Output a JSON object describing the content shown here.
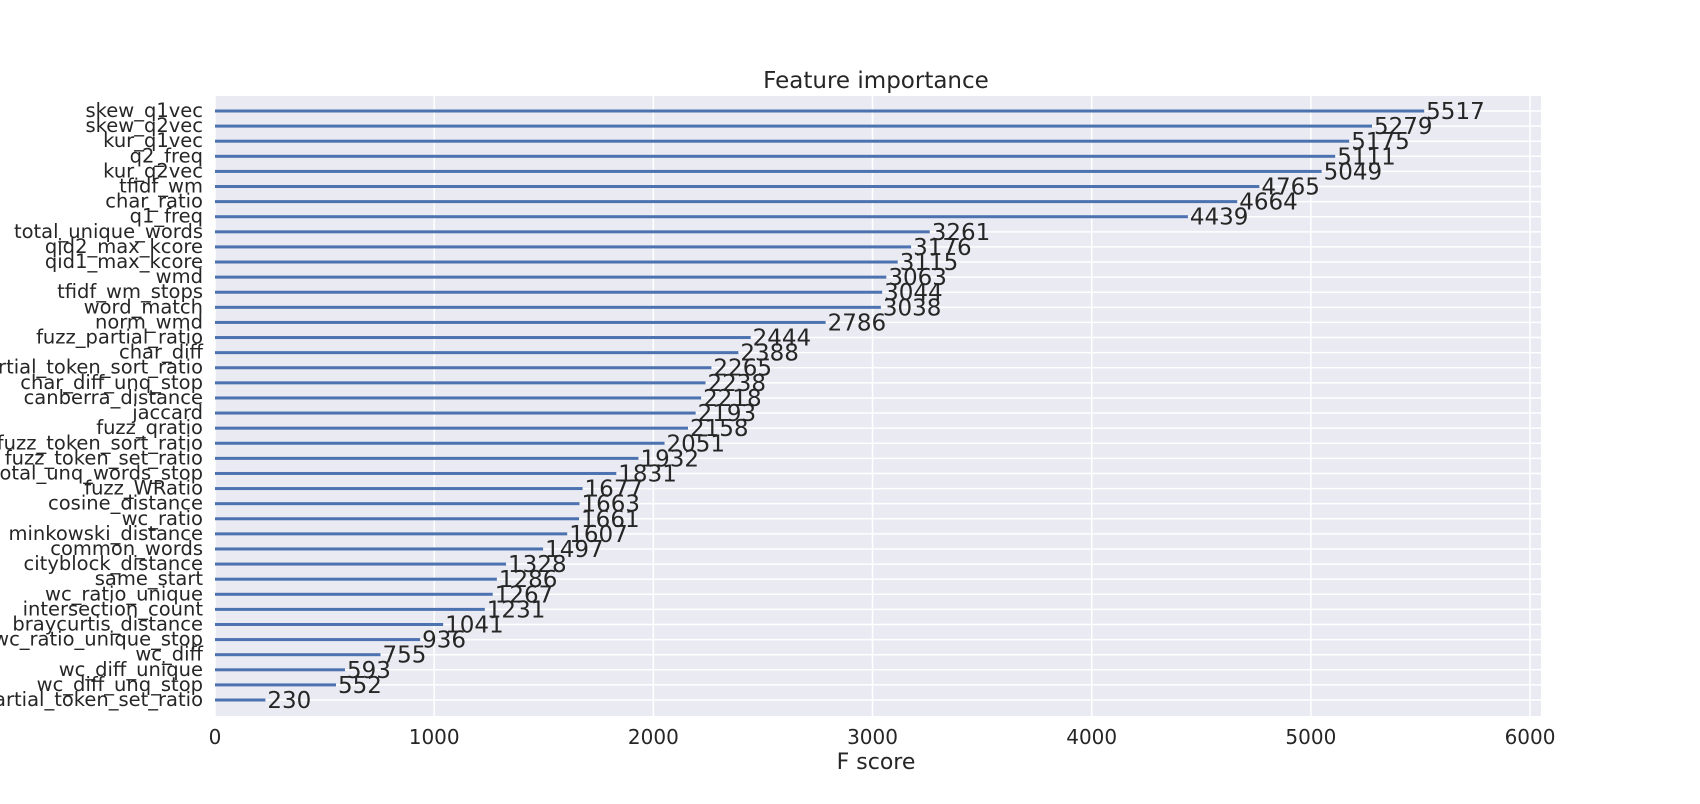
{
  "chart_data": {
    "type": "bar",
    "orientation": "horizontal",
    "title": "Feature importance",
    "xlabel": "F score",
    "ylabel": "",
    "xlim": [
      0,
      6050
    ],
    "xticks": [
      0,
      1000,
      2000,
      3000,
      4000,
      5000,
      6000
    ],
    "grid": true,
    "bar_color": "#4c72b0",
    "background_color": "#eaeaf2",
    "categories": [
      "skew_q1vec",
      "skew_q2vec",
      "kur_q1vec",
      "q2_freq",
      "kur_q2vec",
      "tfidf_wm",
      "char_ratio",
      "q1_freq",
      "total_unique_words",
      "qid2_max_kcore",
      "qid1_max_kcore",
      "wmd",
      "tfidf_wm_stops",
      "word_match",
      "norm_wmd",
      "fuzz_partial_ratio",
      "char_diff",
      "fuzz_partial_token_sort_ratio",
      "char_diff_unq_stop",
      "canberra_distance",
      "jaccard",
      "fuzz_qratio",
      "fuzz_token_sort_ratio",
      "fuzz_token_set_ratio",
      "total_unq_words_stop",
      "fuzz_WRatio",
      "cosine_distance",
      "wc_ratio",
      "minkowski_distance",
      "common_words",
      "cityblock_distance",
      "same_start",
      "wc_ratio_unique",
      "intersection_count",
      "braycurtis_distance",
      "wc_ratio_unique_stop",
      "wc_diff",
      "wc_diff_unique",
      "wc_diff_unq_stop",
      "fuzz_partial_token_set_ratio"
    ],
    "values": [
      5517,
      5279,
      5175,
      5111,
      5049,
      4765,
      4664,
      4439,
      3261,
      3176,
      3115,
      3063,
      3044,
      3038,
      2786,
      2444,
      2388,
      2265,
      2238,
      2218,
      2193,
      2158,
      2051,
      1932,
      1831,
      1677,
      1663,
      1661,
      1607,
      1497,
      1328,
      1286,
      1267,
      1231,
      1041,
      936,
      755,
      593,
      552,
      230
    ]
  }
}
